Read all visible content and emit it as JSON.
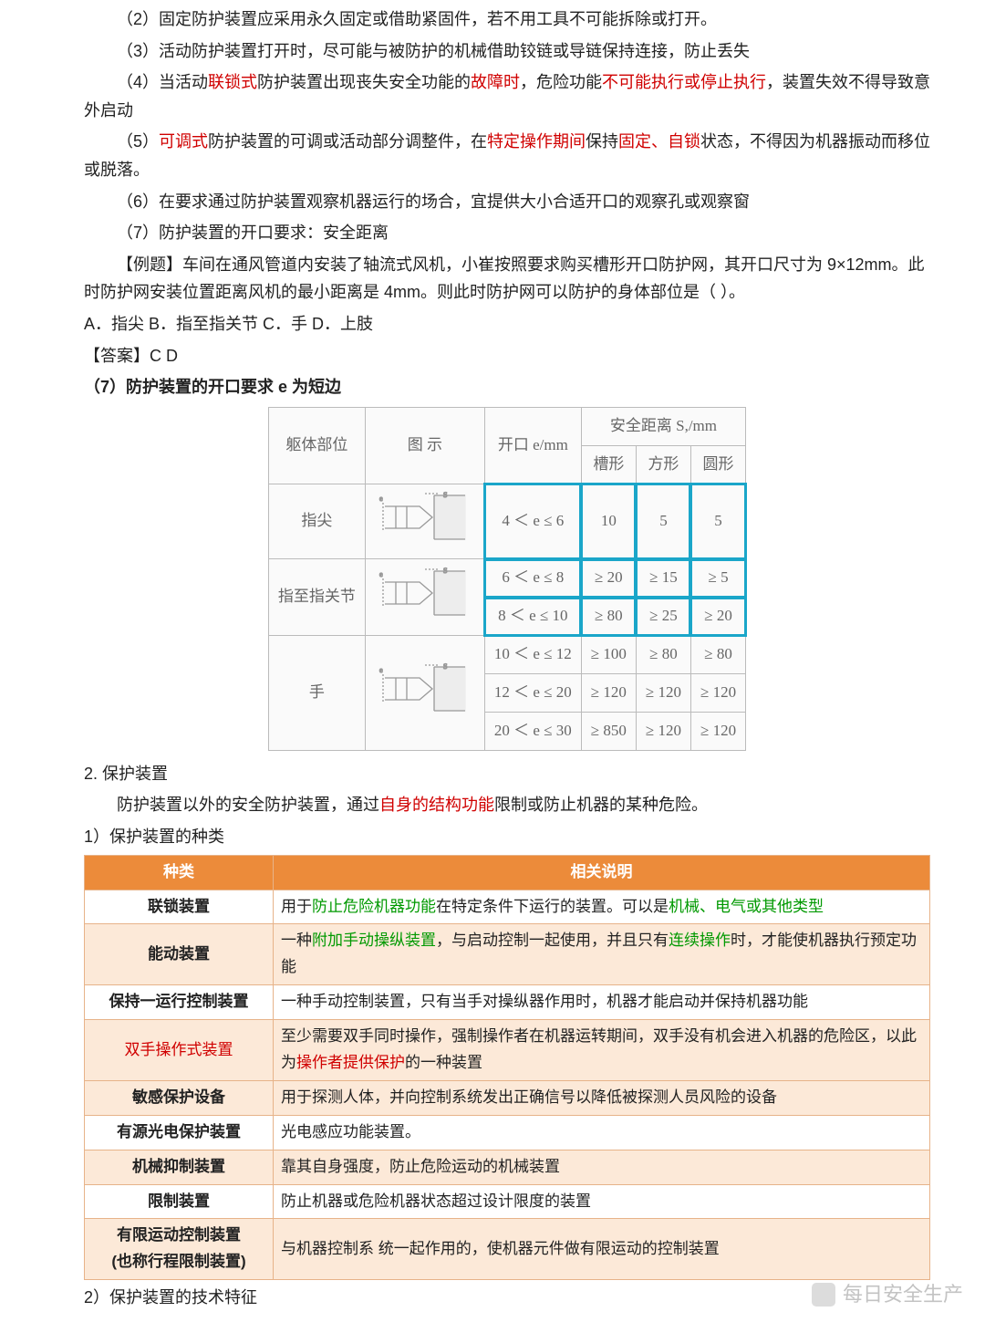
{
  "text": {
    "p2": "（2）固定防护装置应采用永久固定或借助紧固件，若不用工具不可能拆除或打开。",
    "p3": "（3）活动防护装置打开时，尽可能与被防护的机械借助铰链或导链保持连接，防止丢失",
    "p4_a": "（4）当活动",
    "p4_b": "联锁式",
    "p4_c": "防护装置出现丧失安全功能的",
    "p4_d": "故障时",
    "p4_e": "，危险功能",
    "p4_f": "不可能执行或停止执行",
    "p4_g": "，装置失效不得导致意外启动",
    "p5_a": "（5）",
    "p5_b": "可调式",
    "p5_c": "防护装置的可调或活动部分调整件，在",
    "p5_d": "特定操作期间",
    "p5_e": "保持",
    "p5_f": "固定、自锁",
    "p5_g": "状态，不得因为机器振动而移位或脱落。",
    "p6": "（6）在要求通过防护装置观察机器运行的场合，宜提供大小合适开口的观察孔或观察窗",
    "p7": "（7）防护装置的开口要求：安全距离",
    "ex1": "【例题】车间在通风管道内安装了轴流式风机，小崔按照要求购买槽形开口防护网，其开口尺寸为 9×12mm。此时防护网安装位置距离风机的最小距离是 4mm。则此时防护网可以防护的身体部位是（  ）。",
    "ex2": "A．指尖   B．指至指关节   C．手   D．上肢",
    "ex3": "【答案】C D",
    "t7": "（7）防护装置的开口要求 e 为短边",
    "s2": "2. 保护装置",
    "s2p_a": "防护装置以外的安全防护装置，通过",
    "s2p_b": "自身的结构功能",
    "s2p_c": "限制或防止机器的某种危险。",
    "s2_1": "1）保护装置的种类",
    "s2_2": "2）保护装置的技术特征"
  },
  "gtable": {
    "headers": {
      "body": "躯体部位",
      "illus": "图  示",
      "e": "开口 e/mm",
      "sr": "安全距离 S,/mm",
      "slot": "槽形",
      "sq": "方形",
      "rd": "圆形"
    },
    "rows": [
      {
        "body": "指尖",
        "rowspan": 1,
        "e": [
          "4 ＜ e ≤ 6"
        ],
        "slot": [
          "10"
        ],
        "sq": [
          "5"
        ],
        "rd": [
          "5"
        ],
        "hl": true
      },
      {
        "body": "指至指关节",
        "rowspan": 2,
        "e": [
          "6 ＜ e ≤ 8",
          "8 ＜ e ≤ 10"
        ],
        "slot": [
          "≥ 20",
          "≥ 80"
        ],
        "sq": [
          "≥ 15",
          "≥ 25"
        ],
        "rd": [
          "≥ 5",
          "≥ 20"
        ],
        "hl": true
      },
      {
        "body": "手",
        "rowspan": 3,
        "e": [
          "10 ＜ e ≤ 12",
          "12 ＜ e ≤ 20",
          "20 ＜ e ≤ 30"
        ],
        "slot": [
          "≥ 100",
          "≥ 120",
          "≥ 850"
        ],
        "sq": [
          "≥ 80",
          "≥ 120",
          "≥ 120"
        ],
        "rd": [
          "≥ 80",
          "≥ 120",
          "≥ 120"
        ],
        "hl": false
      }
    ]
  },
  "otable": {
    "headers": {
      "kind": "种类",
      "desc": "相关说明"
    },
    "rows": [
      {
        "alt": false,
        "kind": "联锁装置",
        "kind_red": false,
        "parts": [
          {
            "t": "用于"
          },
          {
            "t": "防止危险机器功能",
            "c": "green"
          },
          {
            "t": "在特定条件下运行的装置。可以是"
          },
          {
            "t": "机械、电气或其他类型",
            "c": "green"
          }
        ]
      },
      {
        "alt": true,
        "kind": "能动装置",
        "kind_red": false,
        "parts": [
          {
            "t": "一种"
          },
          {
            "t": "附加手动操纵装置",
            "c": "green"
          },
          {
            "t": "，与启动控制一起使用，并且只有"
          },
          {
            "t": "连续操作",
            "c": "green"
          },
          {
            "t": "时，才能使机器执行预定功能"
          }
        ]
      },
      {
        "alt": false,
        "kind": "保持一运行控制装置",
        "kind_red": false,
        "parts": [
          {
            "t": "一种手动控制装置，只有当手对操纵器作用时，机器才能启动并保持机器功能"
          }
        ]
      },
      {
        "alt": true,
        "kind": "双手操作式装置",
        "kind_red": true,
        "parts": [
          {
            "t": "至少需要双手同时操作，强制操作者在机器运转期间，双手没有机会进入机器的危险区，以此为"
          },
          {
            "t": "操作者提供保护",
            "c": "red"
          },
          {
            "t": "的一种装置"
          }
        ]
      },
      {
        "alt": true,
        "kind": "敏感保护设备",
        "kind_red": false,
        "parts": [
          {
            "t": "用于探测人体，并向控制系统发出正确信号以降低被探测人员风险的设备"
          }
        ]
      },
      {
        "alt": false,
        "kind": "有源光电保护装置",
        "kind_red": false,
        "parts": [
          {
            "t": "光电感应功能装置。"
          }
        ]
      },
      {
        "alt": true,
        "kind": "机械抑制装置",
        "kind_red": false,
        "parts": [
          {
            "t": "靠其自身强度，防止危险运动的机械装置"
          }
        ]
      },
      {
        "alt": false,
        "kind": "限制装置",
        "kind_red": false,
        "parts": [
          {
            "t": "防止机器或危险机器状态超过设计限度的装置"
          }
        ]
      },
      {
        "alt": true,
        "kind": "有限运动控制装置\n(也称行程限制装置)",
        "kind_red": false,
        "parts": [
          {
            "t": "与机器控制系  统一起作用的，使机器元件做有限运动的控制装置"
          }
        ]
      }
    ]
  },
  "watermark": "每日安全生产"
}
